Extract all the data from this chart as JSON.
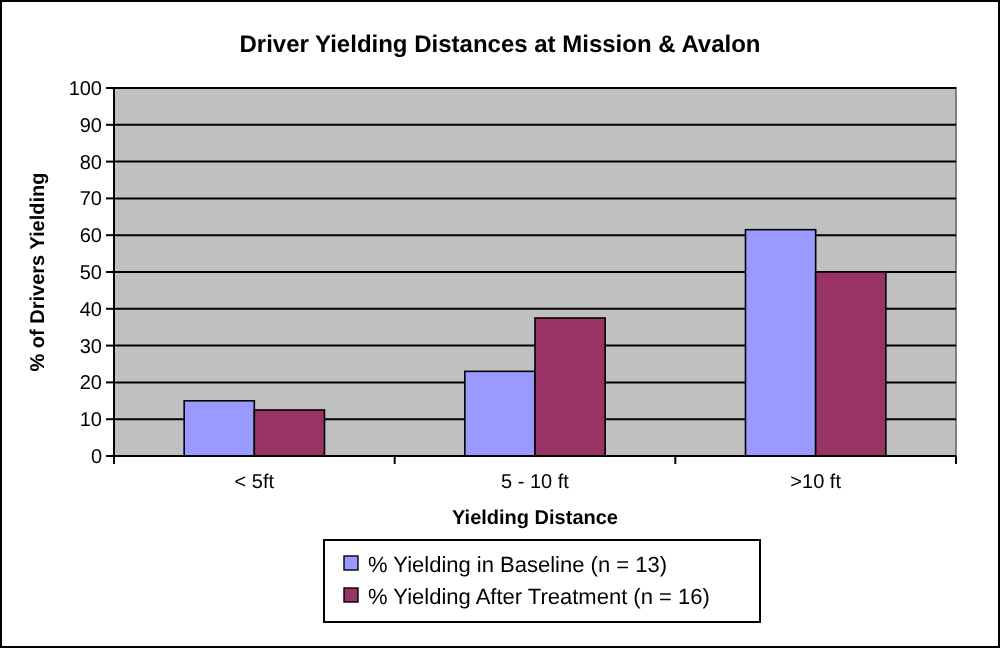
{
  "chart_data": {
    "type": "bar",
    "title": "Driver Yielding Distances at Mission & Avalon",
    "xlabel": "Yielding Distance",
    "ylabel": "% of Drivers Yielding",
    "categories": [
      "<  5ft",
      "5 - 10 ft",
      ">10 ft"
    ],
    "series": [
      {
        "name": "% Yielding in Baseline (n = 13)",
        "color": "#9999ff",
        "values": [
          15,
          23,
          61.5
        ]
      },
      {
        "name": "% Yielding After Treatment (n = 16)",
        "color": "#993366",
        "values": [
          12.5,
          37.5,
          50
        ]
      }
    ],
    "ylim": [
      0,
      100
    ],
    "yticks": [
      0,
      10,
      20,
      30,
      40,
      50,
      60,
      70,
      80,
      90,
      100
    ],
    "grid": "y",
    "legend": "bottom"
  }
}
